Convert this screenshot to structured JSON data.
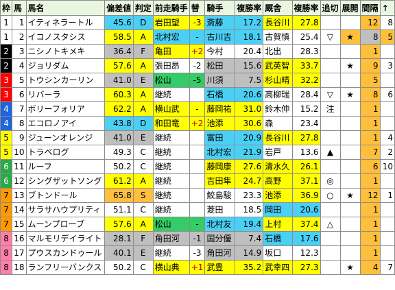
{
  "headers": [
    "枠",
    "馬",
    "馬名",
    "偏差値",
    "判定",
    "前走騎手",
    "替",
    "騎手",
    "複勝率",
    "厩舎",
    "複勝率",
    "追切",
    "展開",
    "間隔",
    "↑"
  ],
  "colors": {
    "blue": "#4bd0f5",
    "yellow": "#ffff00",
    "gray": "#bfbfbf",
    "orange": "#ffbf3c",
    "green": "#33cc66"
  },
  "rows": [
    {
      "waku": "1",
      "uma": "1",
      "name": "イティネラートル",
      "score": "45.6",
      "grade": "D",
      "prev_jockey": "岩田望",
      "change": "-3",
      "jockey": "斎藤",
      "jrate": "17.2",
      "stable": "長谷川",
      "srate": "27.8",
      "oikiri": "",
      "tenkai": "",
      "interval": "12",
      "arrow": "8",
      "c_score": "blue",
      "c_prev": "yellow",
      "c_jockey": "blue",
      "c_stable": "yellow",
      "c_int": "orange"
    },
    {
      "waku": "1",
      "uma": "2",
      "name": "イコノスタシス",
      "score": "58.5",
      "grade": "A",
      "prev_jockey": "北村宏",
      "change": "-",
      "jockey": "古川吉",
      "jrate": "18.1",
      "stable": "古賀慎",
      "srate": "25.4",
      "oikiri": "▽",
      "tenkai": "★",
      "interval": "8",
      "arrow": "5",
      "c_score": "yellow",
      "c_prev": "blue",
      "c_jockey": "blue",
      "c_stable": "wbg",
      "c_int": "gray",
      "c_tenkai": "orange",
      "c_arrow": "orange"
    },
    {
      "waku": "2",
      "uma": "3",
      "name": "ニシノトキメキ",
      "score": "36.4",
      "grade": "F",
      "prev_jockey": "亀田",
      "change": "+2",
      "jockey": "今村",
      "jrate": "20.4",
      "stable": "北出",
      "srate": "28.3",
      "oikiri": "",
      "tenkai": "",
      "interval": "1",
      "arrow": "",
      "c_score": "gray",
      "c_prev": "yellow",
      "c_jockey": "wbg",
      "c_stable": "wbg",
      "c_int": "orange"
    },
    {
      "waku": "2",
      "uma": "4",
      "name": "ジョリダム",
      "score": "57.6",
      "grade": "A",
      "prev_jockey": "張田昂",
      "change": "-2",
      "jockey": "松田",
      "jrate": "15.6",
      "stable": "武英智",
      "srate": "33.7",
      "oikiri": "",
      "tenkai": "★",
      "interval": "9",
      "arrow": "3",
      "c_score": "yellow",
      "c_prev": "wbg",
      "c_jockey": "gray",
      "c_stable": "yellow",
      "c_int": "orange"
    },
    {
      "waku": "3",
      "uma": "5",
      "name": "トウシンカーリン",
      "score": "41.0",
      "grade": "E",
      "prev_jockey": "松山",
      "change": "-5",
      "jockey": "川須",
      "jrate": "7.5",
      "stable": "杉山晴",
      "srate": "32.2",
      "oikiri": "",
      "tenkai": "",
      "interval": "5",
      "arrow": "",
      "c_score": "gray",
      "c_prev": "green",
      "c_jockey": "gray",
      "c_stable": "yellow",
      "c_int": "orange"
    },
    {
      "waku": "3",
      "uma": "6",
      "name": "リバーラ",
      "score": "60.3",
      "grade": "A",
      "prev_jockey": "継続",
      "change": "",
      "jockey": "石橋",
      "jrate": "20.6",
      "stable": "高柳瑞",
      "srate": "28.4",
      "oikiri": "▽",
      "tenkai": "★",
      "interval": "8",
      "arrow": "6",
      "c_score": "yellow",
      "c_prev": "wbg",
      "c_jockey": "blue",
      "c_stable": "wbg",
      "c_int": "orange"
    },
    {
      "waku": "4",
      "uma": "7",
      "name": "ボリーフォリア",
      "score": "62.2",
      "grade": "A",
      "prev_jockey": "横山武",
      "change": "-",
      "jockey": "藤岡祐",
      "jrate": "31.0",
      "stable": "鈴木伸",
      "srate": "15.2",
      "oikiri": "注",
      "tenkai": "",
      "interval": "1",
      "arrow": "",
      "c_score": "yellow",
      "c_prev": "yellow",
      "c_jockey": "yellow",
      "c_stable": "wbg",
      "c_int": "orange"
    },
    {
      "waku": "4",
      "uma": "8",
      "name": "エコロノアイ",
      "score": "43.8",
      "grade": "D",
      "prev_jockey": "和田竜",
      "change": "+2",
      "jockey": "池添",
      "jrate": "30.6",
      "stable": "森",
      "srate": "23.4",
      "oikiri": "",
      "tenkai": "",
      "interval": "1",
      "arrow": "",
      "c_score": "blue",
      "c_prev": "yellow",
      "c_jockey": "yellow",
      "c_stable": "wbg",
      "c_int": "orange"
    },
    {
      "waku": "5",
      "uma": "9",
      "name": "ジューンオレンジ",
      "score": "41.0",
      "grade": "E",
      "prev_jockey": "継続",
      "change": "",
      "jockey": "富田",
      "jrate": "20.9",
      "stable": "長谷川",
      "srate": "27.8",
      "oikiri": "",
      "tenkai": "",
      "interval": "1",
      "arrow": "4",
      "c_score": "gray",
      "c_prev": "wbg",
      "c_jockey": "blue",
      "c_stable": "yellow",
      "c_int": "orange"
    },
    {
      "waku": "5",
      "uma": "10",
      "name": "トラベログ",
      "score": "49.3",
      "grade": "C",
      "prev_jockey": "継続",
      "change": "",
      "jockey": "北村宏",
      "jrate": "21.9",
      "stable": "岩戸",
      "srate": "13.6",
      "oikiri": "▲",
      "tenkai": "",
      "interval": "7",
      "arrow": "2",
      "c_score": "wbg",
      "c_prev": "wbg",
      "c_jockey": "blue",
      "c_stable": "wbg",
      "c_int": "orange"
    },
    {
      "waku": "6",
      "uma": "11",
      "name": "ルーフ",
      "score": "50.2",
      "grade": "C",
      "prev_jockey": "継続",
      "change": "",
      "jockey": "藤岡康",
      "jrate": "27.6",
      "stable": "清水久",
      "srate": "26.1",
      "oikiri": "",
      "tenkai": "",
      "interval": "6",
      "arrow": "10",
      "c_score": "wbg",
      "c_prev": "wbg",
      "c_jockey": "yellow",
      "c_stable": "yellow",
      "c_int": "orange"
    },
    {
      "waku": "6",
      "uma": "12",
      "name": "シングザットソング",
      "score": "61.2",
      "grade": "A",
      "prev_jockey": "継続",
      "change": "",
      "jockey": "吉田隼",
      "jrate": "24.7",
      "stable": "高野",
      "srate": "37.1",
      "oikiri": "◎",
      "tenkai": "",
      "interval": "1",
      "arrow": "",
      "c_score": "yellow",
      "c_prev": "wbg",
      "c_jockey": "yellow",
      "c_stable": "yellow",
      "c_int": "orange"
    },
    {
      "waku": "7",
      "uma": "13",
      "name": "ブトンドール",
      "score": "65.8",
      "grade": "S",
      "prev_jockey": "継続",
      "change": "",
      "jockey": "鮫島駿",
      "jrate": "23.3",
      "stable": "池添",
      "srate": "36.9",
      "oikiri": "○",
      "tenkai": "★",
      "interval": "12",
      "arrow": "1",
      "c_score": "orange",
      "c_prev": "wbg",
      "c_jockey": "wbg",
      "c_stable": "yellow",
      "c_int": "orange"
    },
    {
      "waku": "7",
      "uma": "14",
      "name": "サラサハウプリティ",
      "score": "51.1",
      "grade": "C",
      "prev_jockey": "継続",
      "change": "",
      "jockey": "菱田",
      "jrate": "18.5",
      "stable": "岡田",
      "srate": "20.6",
      "oikiri": "",
      "tenkai": "",
      "interval": "1",
      "arrow": "",
      "c_score": "wbg",
      "c_prev": "wbg",
      "c_jockey": "wbg",
      "c_stable": "blue",
      "c_int": "orange"
    },
    {
      "waku": "7",
      "uma": "15",
      "name": "ムーンプローブ",
      "score": "57.6",
      "grade": "A",
      "prev_jockey": "松山",
      "change": "-",
      "jockey": "北村友",
      "jrate": "19.4",
      "stable": "上村",
      "srate": "37.4",
      "oikiri": "△",
      "tenkai": "",
      "interval": "1",
      "arrow": "",
      "c_score": "yellow",
      "c_prev": "green",
      "c_jockey": "blue",
      "c_stable": "yellow",
      "c_int": "orange"
    },
    {
      "waku": "8",
      "uma": "16",
      "name": "マルモリデイライト",
      "score": "28.1",
      "grade": "F",
      "prev_jockey": "角田河",
      "change": "-1",
      "jockey": "国分優",
      "jrate": "7.4",
      "stable": "石橋",
      "srate": "17.6",
      "oikiri": "",
      "tenkai": "",
      "interval": "1",
      "arrow": "",
      "c_score": "gray",
      "c_prev": "gray",
      "c_jockey": "gray",
      "c_stable": "blue",
      "c_int": "orange"
    },
    {
      "waku": "8",
      "uma": "17",
      "name": "プウスカンドゥール",
      "score": "40.1",
      "grade": "E",
      "prev_jockey": "継続",
      "change": "-3",
      "jockey": "角田河",
      "jrate": "14.9",
      "stable": "坂口",
      "srate": "12.3",
      "oikiri": "",
      "tenkai": "",
      "interval": "1",
      "arrow": "",
      "c_score": "gray",
      "c_prev": "wbg",
      "c_jockey": "gray",
      "c_stable": "wbg",
      "c_int": "orange"
    },
    {
      "waku": "8",
      "uma": "18",
      "name": "ランフリーバンクス",
      "score": "50.2",
      "grade": "C",
      "prev_jockey": "横山典",
      "change": "+1",
      "jockey": "武豊",
      "jrate": "35.2",
      "stable": "武幸四",
      "srate": "27.3",
      "oikiri": "",
      "tenkai": "★",
      "interval": "4",
      "arrow": "7",
      "c_score": "wbg",
      "c_prev": "yellow",
      "c_jockey": "yellow",
      "c_stable": "yellow",
      "c_int": "orange"
    }
  ]
}
